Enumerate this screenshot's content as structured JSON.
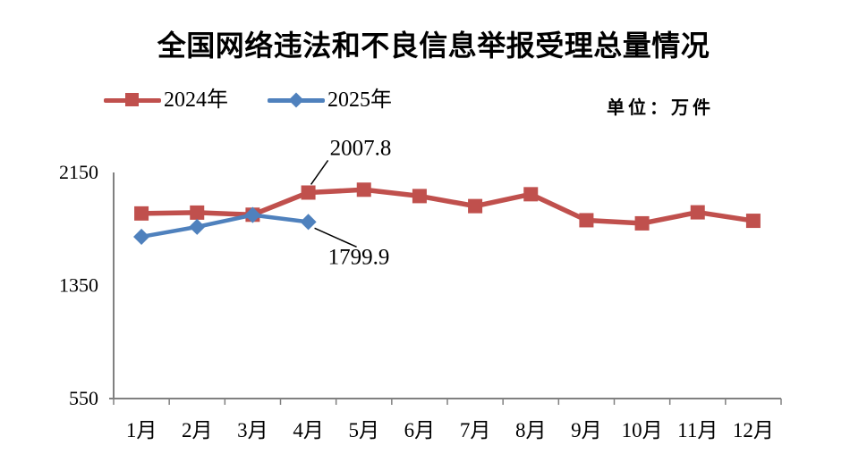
{
  "title": "全国网络违法和不良信息举报受理总量情况",
  "unit_label": "单位：万件",
  "chart_data": {
    "type": "line",
    "title": "全国网络违法和不良信息举报受理总量情况",
    "unit": "万件",
    "categories": [
      "1月",
      "2月",
      "3月",
      "4月",
      "5月",
      "6月",
      "7月",
      "8月",
      "9月",
      "10月",
      "11月",
      "12月"
    ],
    "series": [
      {
        "name": "2024年",
        "color": "#c0504d",
        "marker": "square",
        "values": [
          1860,
          1866,
          1851,
          2007.8,
          2028,
          1983,
          1912,
          1996,
          1812,
          1790,
          1868,
          1808
        ]
      },
      {
        "name": "2025年",
        "color": "#4f81bd",
        "marker": "diamond",
        "values": [
          1695,
          1765,
          1849,
          1799.9
        ]
      }
    ],
    "annotations": [
      {
        "text": "2007.8",
        "series": 0,
        "month": "4月"
      },
      {
        "text": "1799.9",
        "series": 1,
        "month": "4月"
      }
    ],
    "yticks": [
      2150,
      1350,
      550
    ],
    "ylim": [
      550,
      2150
    ],
    "grid": false,
    "legend_position": "top-left",
    "axis_color": "#808080"
  }
}
